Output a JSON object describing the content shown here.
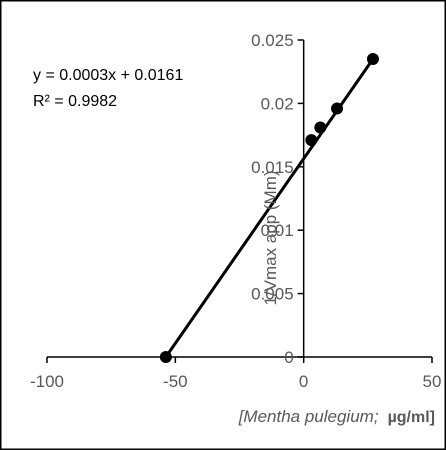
{
  "chart_data": {
    "type": "scatter",
    "series": [
      {
        "x": [
          -53.7,
          3.0,
          6.5,
          13.0,
          27.0
        ],
        "y": [
          0.0,
          0.0171,
          0.0181,
          0.0196,
          0.0235
        ]
      }
    ],
    "trendline": {
      "equation": "y = 0.0003x + 0.0161",
      "r2": "R² = 0.9982",
      "x_range": [
        -53.7,
        27.0
      ]
    },
    "xlim": [
      -100,
      50
    ],
    "ylim": [
      0,
      0.025
    ],
    "xticks": [
      -100,
      -50,
      0,
      50
    ],
    "xtick_labels": [
      "-100",
      "-50",
      "0",
      "50"
    ],
    "yticks": [
      0,
      0.005,
      0.01,
      0.015,
      0.02,
      0.025
    ],
    "ytick_labels": [
      "0",
      "0.005",
      "0.01",
      "0.015",
      "0.02",
      "0.025"
    ],
    "ylabel": "1/Vmax app (Mm)",
    "xlabel_italic": "[Mentha pulegium;",
    "xlabel_bold": "µg/ml]",
    "grid": false,
    "colors": {
      "marker": "#000000",
      "line": "#000000",
      "axis": "#000000",
      "frame": "#000000"
    }
  }
}
